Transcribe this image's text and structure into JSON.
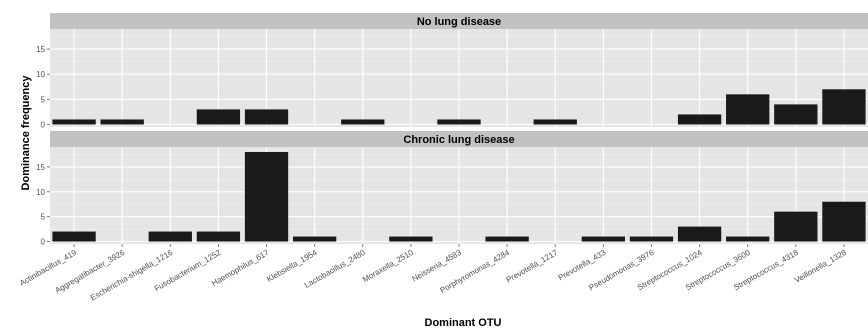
{
  "chart_data": {
    "type": "bar",
    "xlabel": "Dominant OTU",
    "ylabel": "Dominance frequency",
    "ylim": [
      -0.5,
      19
    ],
    "yticks": [
      0,
      5,
      10,
      15
    ],
    "grid": true,
    "categories": [
      "Actinibacillus_419",
      "Aggregatibacter_3926",
      "Escherichia-shigella_1216",
      "Fusobacterium_1252",
      "Haemophilus_617",
      "Klebsiella_1954",
      "Lactobacillus_2480",
      "Moraxella_2510",
      "Neisseria_4583",
      "Porphyromonas_4284",
      "Prevotella_1217",
      "Prevotella_433",
      "Pseudomonas_3976",
      "Streptococcus_1024",
      "Streptococcus_3600",
      "Streptococcus_4318",
      "Veillonella_1328"
    ],
    "panels": [
      {
        "title": "No lung disease",
        "values": [
          1,
          1,
          0,
          3,
          3,
          0,
          1,
          0,
          1,
          0,
          1,
          0,
          0,
          2,
          6,
          4,
          7
        ]
      },
      {
        "title": "Chronic lung disease",
        "values": [
          2,
          0,
          2,
          2,
          18,
          1,
          0,
          1,
          0,
          1,
          0,
          1,
          1,
          3,
          1,
          6,
          8
        ]
      }
    ],
    "colors": {
      "bar": "#1a1a1a",
      "panel_bg": "#e5e5e5",
      "strip_bg": "#c2c2c2",
      "grid_major": "#ffffff",
      "grid_minor": "#f0f0f0"
    }
  }
}
